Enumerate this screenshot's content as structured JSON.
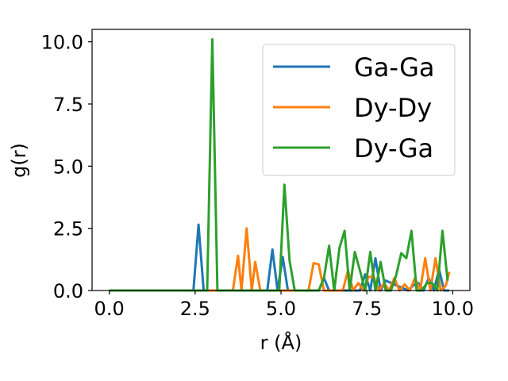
{
  "chart_data": {
    "type": "line",
    "xlabel": "r (Å)",
    "ylabel": "g(r)",
    "xlim": [
      -0.5,
      10.5
    ],
    "ylim": [
      0,
      10.5
    ],
    "xticks": [
      0.0,
      2.5,
      5.0,
      7.5,
      10.0
    ],
    "xtick_labels": [
      "0.0",
      "2.5",
      "5.0",
      "7.5",
      "10.0"
    ],
    "yticks": [
      0.0,
      2.5,
      5.0,
      7.5,
      10.0
    ],
    "ytick_labels": [
      "0.0",
      "2.5",
      "5.0",
      "7.5",
      "10.0"
    ],
    "grid": false,
    "legend_position": "top-right",
    "series": [
      {
        "name": "Ga-Ga",
        "color": "#1f77b4",
        "x": [
          0.0,
          2.45,
          2.6,
          2.75,
          4.6,
          4.75,
          4.9,
          5.05,
          5.2,
          6.1,
          6.25,
          6.4,
          6.55,
          7.3,
          7.45,
          7.6,
          7.75,
          7.9,
          8.05,
          8.7,
          8.85,
          9.0,
          9.15,
          9.3,
          9.45,
          9.6,
          9.75,
          9.9
        ],
        "y": [
          0,
          0,
          2.65,
          0,
          0,
          1.65,
          0,
          1.35,
          0,
          0,
          0.5,
          0,
          0,
          0,
          0.65,
          0,
          1.3,
          0,
          0.4,
          0,
          0.2,
          0.3,
          0,
          0.5,
          0,
          0.85,
          0,
          0
        ]
      },
      {
        "name": "Dy-Dy",
        "color": "#ff7f0e",
        "x": [
          0.0,
          3.6,
          3.75,
          3.85,
          4.0,
          4.15,
          4.25,
          4.4,
          5.8,
          5.95,
          6.1,
          6.25,
          6.8,
          6.95,
          7.1,
          7.25,
          7.4,
          7.55,
          7.7,
          7.85,
          8.0,
          8.15,
          8.3,
          8.45,
          8.6,
          8.75,
          8.9,
          9.05,
          9.2,
          9.35,
          9.5,
          9.65,
          9.8,
          9.9
        ],
        "y": [
          0,
          0,
          1.4,
          0,
          2.5,
          0,
          1.15,
          0,
          0,
          1.1,
          1.05,
          0,
          0,
          0.8,
          0,
          0.3,
          0,
          0.55,
          0.55,
          0,
          0.3,
          0,
          0.5,
          0,
          0.25,
          0,
          0.5,
          0,
          1.3,
          0,
          1.3,
          0,
          0.2,
          0.75
        ]
      },
      {
        "name": "Dy-Ga",
        "color": "#2ca02c",
        "x": [
          0.0,
          2.85,
          3.0,
          3.15,
          4.95,
          5.1,
          5.25,
          5.4,
          6.1,
          6.25,
          6.4,
          6.55,
          6.7,
          6.85,
          7.0,
          7.15,
          7.3,
          7.45,
          7.6,
          7.75,
          7.9,
          8.05,
          8.2,
          8.35,
          8.5,
          8.65,
          8.8,
          8.95,
          9.1,
          9.25,
          9.4,
          9.55,
          9.7,
          9.85
        ],
        "y": [
          0,
          0,
          10.1,
          0,
          0,
          4.25,
          1.2,
          0,
          0,
          0.5,
          1.8,
          0,
          1.7,
          2.4,
          0,
          1.55,
          0.8,
          0,
          1.55,
          0,
          1.15,
          0,
          0,
          0.6,
          1.5,
          1.3,
          2.4,
          0,
          0,
          0.3,
          0.3,
          0,
          2.4,
          0.4
        ]
      }
    ]
  }
}
